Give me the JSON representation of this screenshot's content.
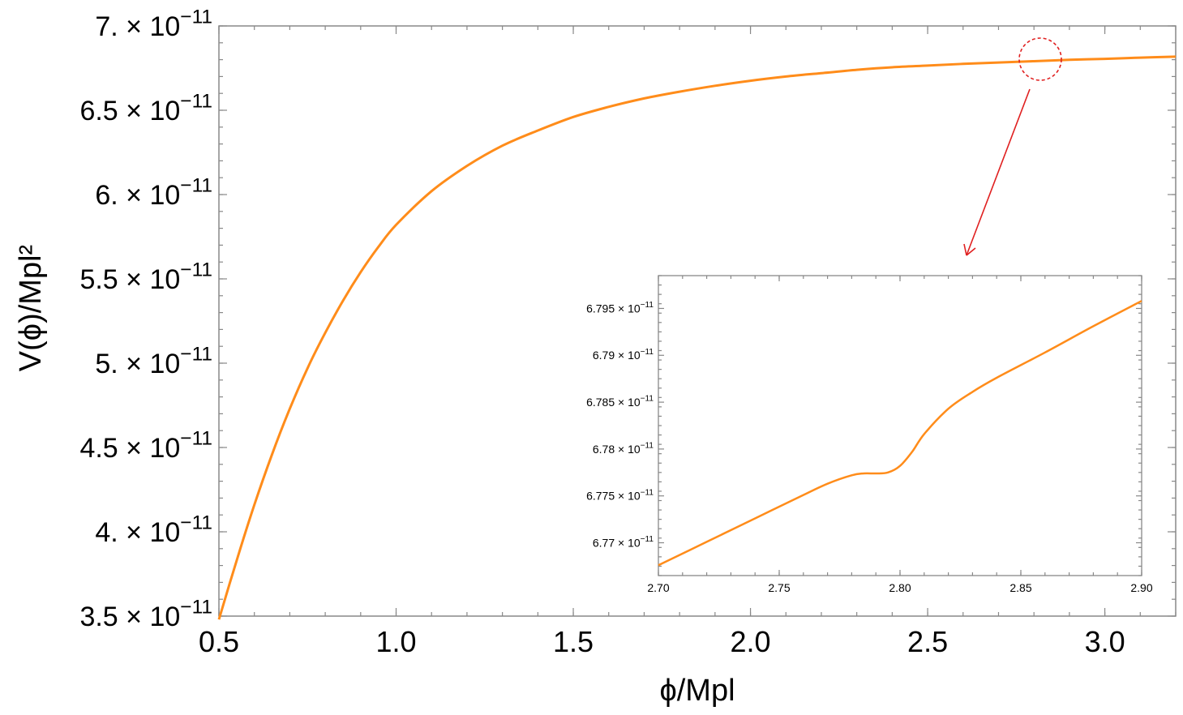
{
  "colors": {
    "curve": "#ff8c1a",
    "frame": "#888888",
    "annotation": "#e02020",
    "text": "#000000"
  },
  "chart_data": [
    {
      "type": "line",
      "xlabel": "ϕ/Mpl",
      "ylabel": "V(ϕ)/Mpl²",
      "xlim": [
        0.5,
        3.2
      ],
      "ylim": [
        3.5e-11,
        7e-11
      ],
      "x_ticks": [
        0.5,
        1.0,
        1.5,
        2.0,
        2.5,
        3.0
      ],
      "x_tick_labels": [
        "0.5",
        "1.0",
        "1.5",
        "2.0",
        "2.5",
        "3.0"
      ],
      "y_ticks": [
        3.5e-11,
        4e-11,
        4.5e-11,
        5e-11,
        5.5e-11,
        6e-11,
        6.5e-11,
        7e-11
      ],
      "y_tick_mantissas": [
        "3.5",
        "4.",
        "4.5",
        "5.",
        "5.5",
        "6.",
        "6.5",
        "7."
      ],
      "y_tick_exponent": "−11",
      "grid": false,
      "series": [
        {
          "x": [
            0.5,
            0.55,
            0.6,
            0.65,
            0.7,
            0.75,
            0.8,
            0.85,
            0.9,
            0.95,
            1.0,
            1.1,
            1.2,
            1.3,
            1.4,
            1.5,
            1.6,
            1.7,
            1.8,
            1.9,
            2.0,
            2.1,
            2.2,
            2.3,
            2.4,
            2.5,
            2.6,
            2.7,
            2.8,
            2.9,
            3.0,
            3.1,
            3.2
          ],
          "y": [
            3.48e-11,
            3.83e-11,
            4.16e-11,
            4.46e-11,
            4.73e-11,
            4.97e-11,
            5.18e-11,
            5.37e-11,
            5.54e-11,
            5.69e-11,
            5.82e-11,
            6.02e-11,
            6.17e-11,
            6.29e-11,
            6.38e-11,
            6.46e-11,
            6.52e-11,
            6.57e-11,
            6.61e-11,
            6.645e-11,
            6.675e-11,
            6.7e-11,
            6.72e-11,
            6.74e-11,
            6.755e-11,
            6.765e-11,
            6.775e-11,
            6.783e-11,
            6.791e-11,
            6.799e-11,
            6.805e-11,
            6.812e-11,
            6.818e-11
          ]
        }
      ]
    },
    {
      "type": "line",
      "xlim": [
        2.7,
        2.9
      ],
      "ylim": [
        6.7665e-11,
        6.7985e-11
      ],
      "x_ticks": [
        2.7,
        2.75,
        2.8,
        2.85,
        2.9
      ],
      "x_tick_labels": [
        "2.70",
        "2.75",
        "2.80",
        "2.85",
        "2.90"
      ],
      "y_ticks": [
        6.77e-11,
        6.775e-11,
        6.78e-11,
        6.785e-11,
        6.79e-11,
        6.795e-11
      ],
      "y_tick_mantissas": [
        "6.77",
        "6.775",
        "6.78",
        "6.785",
        "6.79",
        "6.795"
      ],
      "y_tick_exponent": "−11",
      "grid": false,
      "series": [
        {
          "x": [
            2.7,
            2.72,
            2.74,
            2.76,
            2.77,
            2.78,
            2.785,
            2.79,
            2.795,
            2.8,
            2.805,
            2.81,
            2.82,
            2.83,
            2.84,
            2.86,
            2.88,
            2.9
          ],
          "y": [
            6.7676e-11,
            6.7701e-11,
            6.7726e-11,
            6.7751e-11,
            6.7763e-11,
            6.7772e-11,
            6.7774e-11,
            6.7774e-11,
            6.7775e-11,
            6.7782e-11,
            6.7797e-11,
            6.7816e-11,
            6.7843e-11,
            6.7861e-11,
            6.7876e-11,
            6.7903e-11,
            6.7931e-11,
            6.7958e-11
          ]
        }
      ]
    }
  ]
}
